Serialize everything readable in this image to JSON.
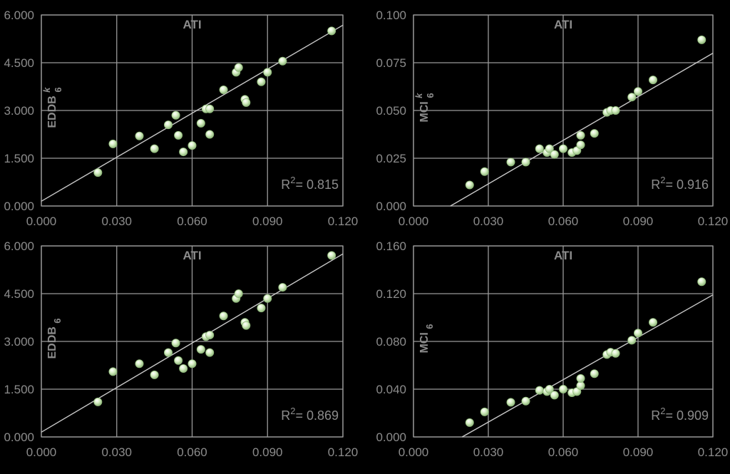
{
  "colors": {
    "background": "#000000",
    "grid": "#9a9a9a",
    "text": "#8c8c8c",
    "marker_fill": "#c9e6b4",
    "marker_edge": "#8fb87a",
    "fit_line": "#c8c8c8"
  },
  "chart_data": [
    {
      "type": "scatter",
      "title": "ATI",
      "ylabel": {
        "main": "EDDB",
        "sub": "6",
        "sup": "k"
      },
      "xlim": [
        0,
        0.12
      ],
      "ylim": [
        0,
        6
      ],
      "xticks": [
        "0.000",
        "0.030",
        "0.060",
        "0.090",
        "0.120"
      ],
      "yticks": [
        "0.000",
        "1.500",
        "3.000",
        "4.500",
        "6.000"
      ],
      "xtick_values": [
        0,
        0.03,
        0.06,
        0.09,
        0.12
      ],
      "ytick_values": [
        0,
        1.5,
        3,
        4.5,
        6
      ],
      "r2_prefix": "R",
      "r2_sup": "2",
      "r2_value": "= 0.815",
      "grid": true,
      "fit": {
        "x": [
          0,
          0.12
        ],
        "y": [
          0.15,
          5.68
        ]
      },
      "points": [
        [
          0.0225,
          1.05
        ],
        [
          0.0285,
          1.95
        ],
        [
          0.039,
          2.2
        ],
        [
          0.045,
          1.8
        ],
        [
          0.0505,
          2.55
        ],
        [
          0.0535,
          2.85
        ],
        [
          0.0545,
          2.22
        ],
        [
          0.0565,
          1.7
        ],
        [
          0.06,
          1.9
        ],
        [
          0.0635,
          2.6
        ],
        [
          0.0655,
          3.05
        ],
        [
          0.067,
          3.05
        ],
        [
          0.067,
          2.25
        ],
        [
          0.0725,
          3.65
        ],
        [
          0.0775,
          4.2
        ],
        [
          0.0785,
          4.35
        ],
        [
          0.081,
          3.35
        ],
        [
          0.0815,
          3.25
        ],
        [
          0.0875,
          3.9
        ],
        [
          0.09,
          4.2
        ],
        [
          0.096,
          4.55
        ],
        [
          0.1155,
          5.5
        ]
      ]
    },
    {
      "type": "scatter",
      "title": "ATI",
      "ylabel": {
        "main": "MCI",
        "sub": "6",
        "sup": "k"
      },
      "xlim": [
        0,
        0.12
      ],
      "ylim": [
        0,
        0.1
      ],
      "xticks": [
        "0.000",
        "0.030",
        "0.060",
        "0.090",
        "0.120"
      ],
      "yticks": [
        "0.000",
        "0.025",
        "0.050",
        "0.075",
        "0.100"
      ],
      "xtick_values": [
        0,
        0.03,
        0.06,
        0.09,
        0.12
      ],
      "ytick_values": [
        0,
        0.025,
        0.05,
        0.075,
        0.1
      ],
      "r2_prefix": "R",
      "r2_sup": "2",
      "r2_value": "= 0.916",
      "grid": true,
      "fit": {
        "x": [
          0.0148,
          0.12
        ],
        "y": [
          0.0,
          0.08
        ]
      },
      "points": [
        [
          0.0225,
          0.011
        ],
        [
          0.0285,
          0.018
        ],
        [
          0.039,
          0.023
        ],
        [
          0.045,
          0.023
        ],
        [
          0.0505,
          0.03
        ],
        [
          0.0535,
          0.028
        ],
        [
          0.0545,
          0.03
        ],
        [
          0.0565,
          0.027
        ],
        [
          0.06,
          0.03
        ],
        [
          0.0635,
          0.028
        ],
        [
          0.0655,
          0.029
        ],
        [
          0.067,
          0.032
        ],
        [
          0.067,
          0.037
        ],
        [
          0.0725,
          0.038
        ],
        [
          0.0775,
          0.049
        ],
        [
          0.079,
          0.05
        ],
        [
          0.081,
          0.05
        ],
        [
          0.0875,
          0.057
        ],
        [
          0.09,
          0.06
        ],
        [
          0.096,
          0.066
        ],
        [
          0.1155,
          0.087
        ]
      ]
    },
    {
      "type": "scatter",
      "title": "ATI",
      "ylabel": {
        "main": "EDDB",
        "sub": "6",
        "sup": ""
      },
      "xlim": [
        0,
        0.12
      ],
      "ylim": [
        0,
        6
      ],
      "xticks": [
        "0.000",
        "0.030",
        "0.060",
        "0.090",
        "0.120"
      ],
      "yticks": [
        "0.000",
        "1.500",
        "3.000",
        "4.500",
        "6.000"
      ],
      "xtick_values": [
        0,
        0.03,
        0.06,
        0.09,
        0.12
      ],
      "ytick_values": [
        0,
        1.5,
        3,
        4.5,
        6
      ],
      "r2_prefix": "R",
      "r2_sup": "2",
      "r2_value": "= 0.869",
      "grid": true,
      "fit": {
        "x": [
          0,
          0.12
        ],
        "y": [
          0.15,
          5.75
        ]
      },
      "points": [
        [
          0.0225,
          1.1
        ],
        [
          0.0285,
          2.05
        ],
        [
          0.039,
          2.3
        ],
        [
          0.045,
          1.95
        ],
        [
          0.0505,
          2.65
        ],
        [
          0.0535,
          2.95
        ],
        [
          0.0545,
          2.4
        ],
        [
          0.0565,
          2.15
        ],
        [
          0.06,
          2.3
        ],
        [
          0.0635,
          2.75
        ],
        [
          0.0655,
          3.15
        ],
        [
          0.067,
          3.2
        ],
        [
          0.067,
          2.65
        ],
        [
          0.0725,
          3.8
        ],
        [
          0.0775,
          4.35
        ],
        [
          0.0785,
          4.5
        ],
        [
          0.081,
          3.6
        ],
        [
          0.0815,
          3.5
        ],
        [
          0.0875,
          4.05
        ],
        [
          0.09,
          4.35
        ],
        [
          0.096,
          4.7
        ],
        [
          0.1155,
          5.7
        ]
      ]
    },
    {
      "type": "scatter",
      "title": "ATI",
      "ylabel": {
        "main": "MCI",
        "sub": "6",
        "sup": ""
      },
      "xlim": [
        0,
        0.12
      ],
      "ylim": [
        0,
        0.16
      ],
      "xticks": [
        "0.000",
        "0.030",
        "0.060",
        "0.090",
        "0.120"
      ],
      "yticks": [
        "0.000",
        "0.040",
        "0.080",
        "0.120",
        "0.160"
      ],
      "xtick_values": [
        0,
        0.03,
        0.06,
        0.09,
        0.12
      ],
      "ytick_values": [
        0,
        0.04,
        0.08,
        0.12,
        0.16
      ],
      "r2_prefix": "R",
      "r2_sup": "2",
      "r2_value": "= 0.909",
      "grid": true,
      "fit": {
        "x": [
          0.0195,
          0.12
        ],
        "y": [
          0.0,
          0.119
        ]
      },
      "points": [
        [
          0.0225,
          0.012
        ],
        [
          0.0285,
          0.021
        ],
        [
          0.039,
          0.029
        ],
        [
          0.045,
          0.03
        ],
        [
          0.0505,
          0.039
        ],
        [
          0.0535,
          0.038
        ],
        [
          0.0545,
          0.04
        ],
        [
          0.0565,
          0.035
        ],
        [
          0.06,
          0.04
        ],
        [
          0.0635,
          0.037
        ],
        [
          0.0655,
          0.038
        ],
        [
          0.067,
          0.043
        ],
        [
          0.067,
          0.049
        ],
        [
          0.0725,
          0.053
        ],
        [
          0.0775,
          0.069
        ],
        [
          0.079,
          0.071
        ],
        [
          0.081,
          0.07
        ],
        [
          0.0875,
          0.081
        ],
        [
          0.09,
          0.087
        ],
        [
          0.096,
          0.096
        ],
        [
          0.1155,
          0.13
        ]
      ]
    }
  ]
}
